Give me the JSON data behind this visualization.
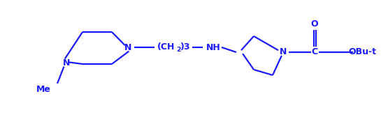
{
  "bg_color": "#ffffff",
  "line_color": "#1a1aff",
  "text_color": "#1a1aff",
  "line_width": 1.6,
  "font_size": 9.0,
  "figsize": [
    5.45,
    1.71
  ],
  "dpi": 100,
  "xlim": [
    0.0,
    5.45
  ],
  "ylim": [
    0.0,
    1.71
  ]
}
